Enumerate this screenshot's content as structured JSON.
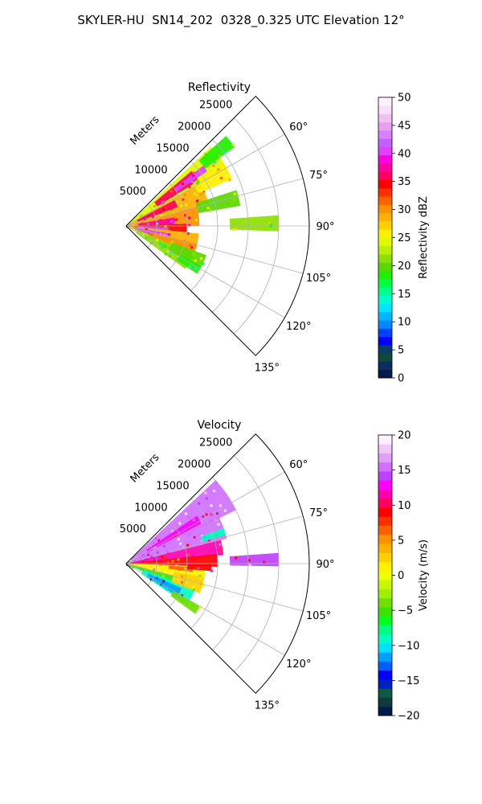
{
  "title": "SKYLER-HU  SN14_202  0328_0.325 UTC Elevation 12°",
  "chart_data": [
    {
      "type": "heatmap",
      "projection": "polar-sector",
      "title": "Reflectivity",
      "radial_label": "Meters",
      "radial_ticks": [
        "5000",
        "10000",
        "15000",
        "20000",
        "25000"
      ],
      "radial_range": [
        0,
        30000
      ],
      "azimuth_range_deg": [
        45,
        135
      ],
      "azimuth_ticks": [
        "60°",
        "75°",
        "90°",
        "105°",
        "120°",
        "135°"
      ],
      "grid": true,
      "colorbar": {
        "label": "Reflectivity dBZ",
        "range": [
          0,
          50
        ],
        "ticks": [
          "0",
          "5",
          "10",
          "15",
          "20",
          "25",
          "30",
          "35",
          "40",
          "45",
          "50"
        ],
        "colors": [
          "#061a4a",
          "#0b2f5c",
          "#0d4a3c",
          "#0a3b6b",
          "#0000ff",
          "#0040ff",
          "#0088ff",
          "#00b8ff",
          "#00e5ff",
          "#00ffc8",
          "#00ff8c",
          "#00ff40",
          "#20f000",
          "#5cd800",
          "#8ee000",
          "#b8f000",
          "#e0f800",
          "#fff000",
          "#ffd000",
          "#ffb000",
          "#ff9000",
          "#ff6000",
          "#ff3000",
          "#ff0000",
          "#ff0060",
          "#ff00a0",
          "#ff00e0",
          "#e040ff",
          "#c060ff",
          "#d880ff",
          "#e8a0f0",
          "#f0c0f0",
          "#f8e0f8",
          "#fff0ff"
        ]
      }
    },
    {
      "type": "heatmap",
      "projection": "polar-sector",
      "title": "Velocity",
      "radial_label": "Meters",
      "radial_ticks": [
        "5000",
        "10000",
        "15000",
        "20000",
        "25000"
      ],
      "radial_range": [
        0,
        30000
      ],
      "azimuth_range_deg": [
        45,
        135
      ],
      "azimuth_ticks": [
        "60°",
        "75°",
        "90°",
        "105°",
        "120°",
        "135°"
      ],
      "grid": true,
      "colorbar": {
        "label": "Velocity (m/s)",
        "range": [
          -20,
          20
        ],
        "ticks": [
          "−20",
          "−15",
          "−10",
          "−5",
          "0",
          "5",
          "10",
          "15",
          "20"
        ],
        "colors": [
          "#061a4a",
          "#0b3b3b",
          "#0d5a40",
          "#0020c0",
          "#0000ff",
          "#0060ff",
          "#00a0ff",
          "#00e0ff",
          "#00ffc0",
          "#00ff80",
          "#00ff20",
          "#40e000",
          "#70e000",
          "#a0f000",
          "#c8f800",
          "#f0ff00",
          "#fff000",
          "#ffd000",
          "#ffb000",
          "#ff9000",
          "#ff6000",
          "#ff3000",
          "#ff0000",
          "#ff0060",
          "#ff00b0",
          "#ff00ff",
          "#c040ff",
          "#d070ff",
          "#e0a0f8",
          "#f0c8f8",
          "#fff0ff"
        ]
      }
    }
  ]
}
